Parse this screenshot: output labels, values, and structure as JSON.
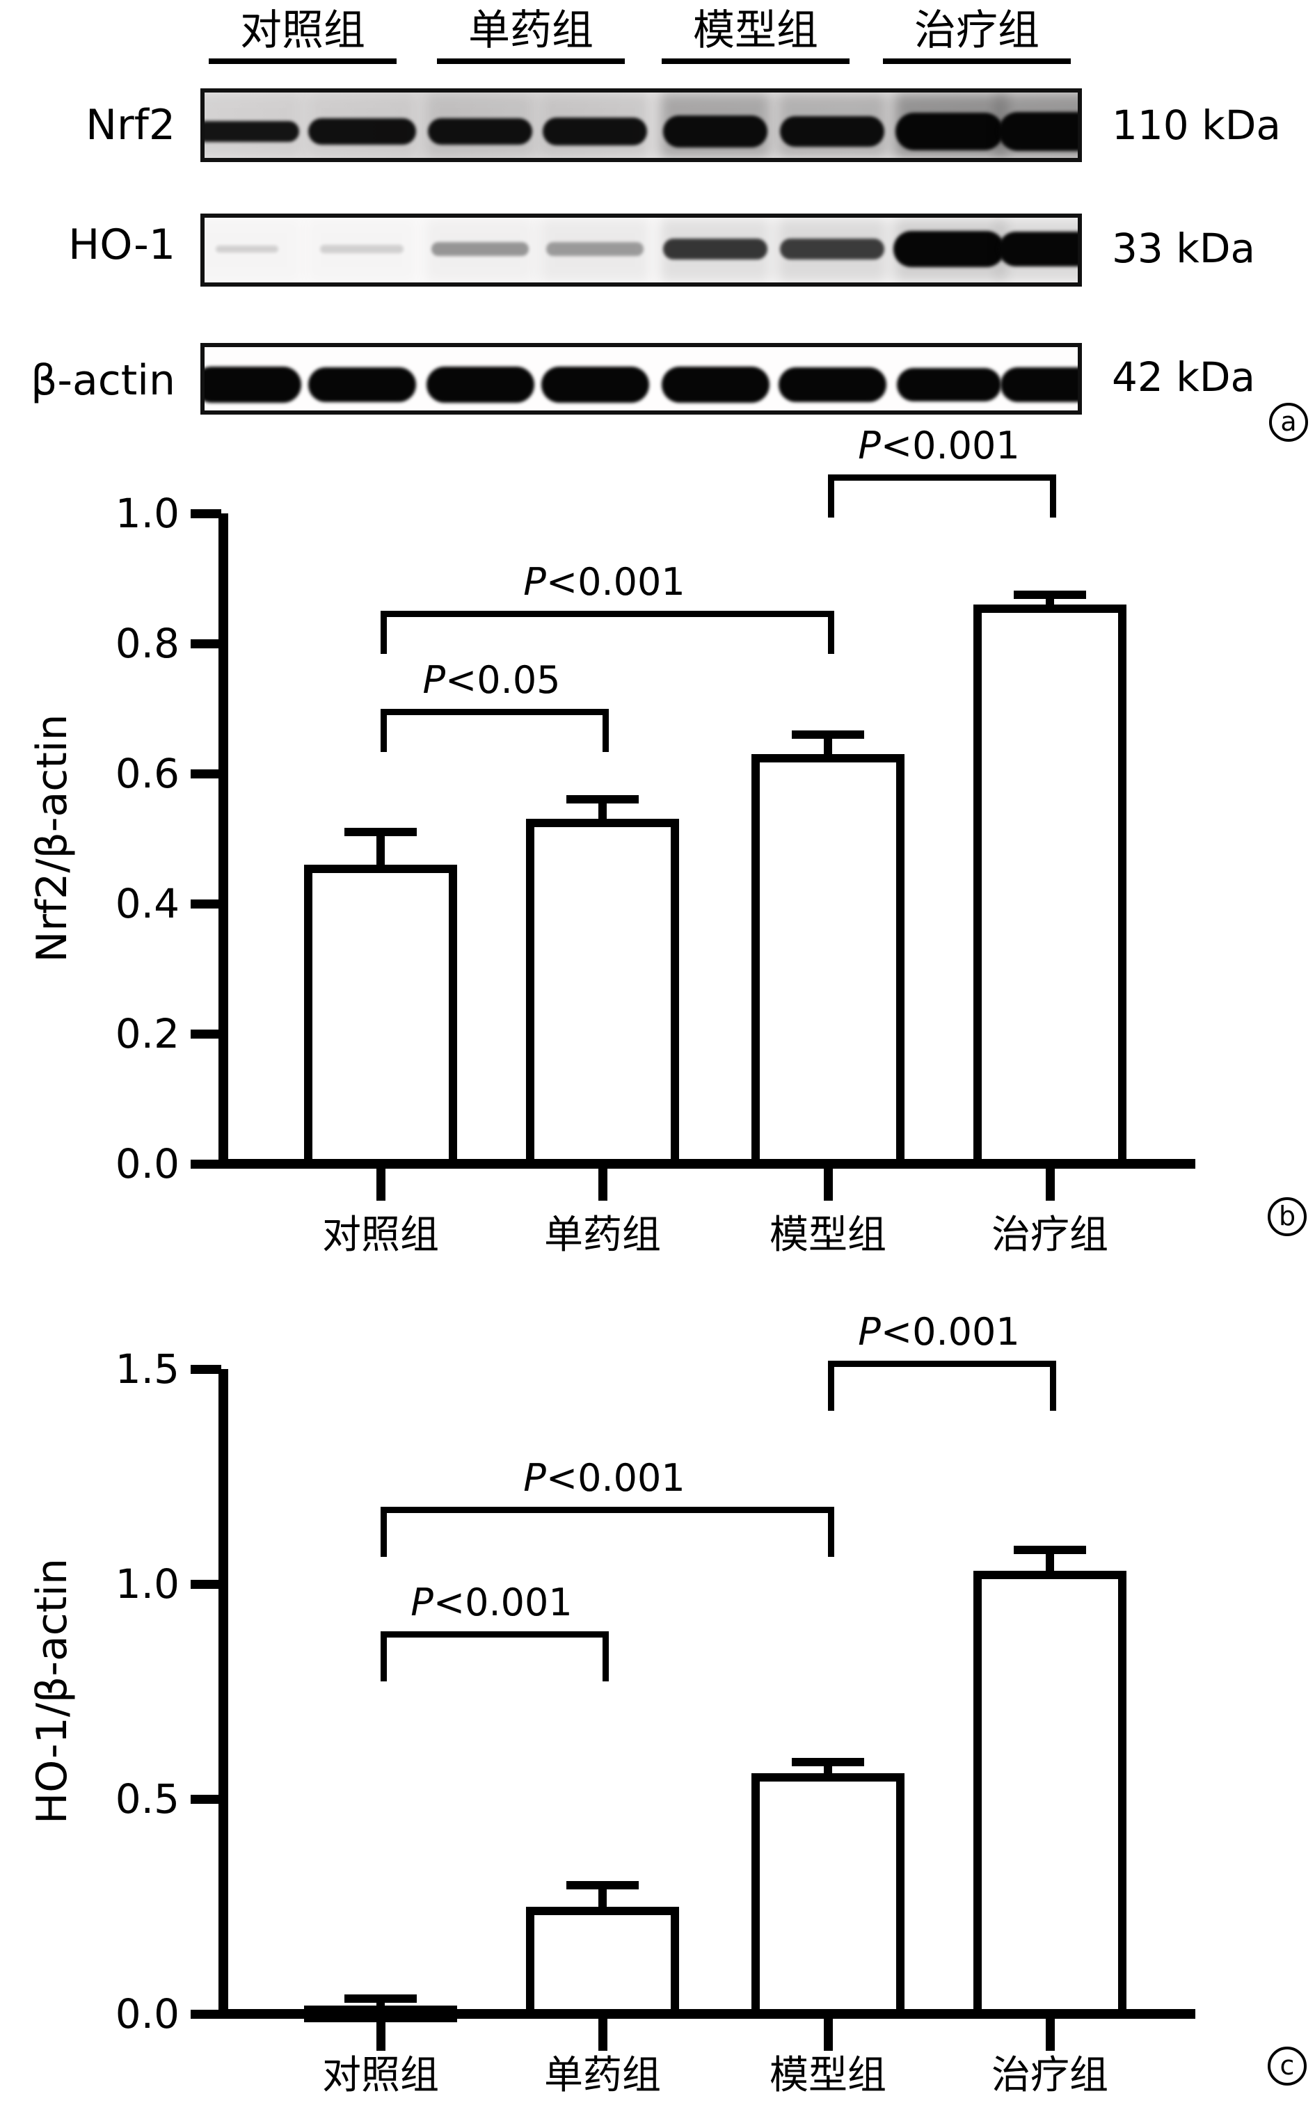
{
  "colors": {
    "ink": "#000000",
    "background": "#ffffff"
  },
  "panel_a": {
    "panel_label": "a",
    "group_labels": [
      "对照组",
      "单药组",
      "模型组",
      "治疗组"
    ],
    "rows": [
      {
        "protein": "Nrf2",
        "kda": "110 kDa",
        "bands": [
          {
            "w": 150,
            "h": 30,
            "o": 0.93,
            "s": 0.08
          },
          {
            "w": 155,
            "h": 38,
            "o": 0.95,
            "s": 0.08
          },
          {
            "w": 150,
            "h": 38,
            "o": 0.95,
            "s": 0.12
          },
          {
            "w": 150,
            "h": 40,
            "o": 0.95,
            "s": 0.12
          },
          {
            "w": 150,
            "h": 46,
            "o": 0.97,
            "s": 0.28
          },
          {
            "w": 150,
            "h": 44,
            "o": 0.96,
            "s": 0.24
          },
          {
            "w": 155,
            "h": 54,
            "o": 1,
            "s": 0.36
          },
          {
            "w": 160,
            "h": 56,
            "o": 1,
            "s": 0.32
          }
        ]
      },
      {
        "protein": "HO-1",
        "kda": "33 kDa",
        "bands": [
          {
            "w": 90,
            "h": 10,
            "o": 0.15,
            "s": 0.02
          },
          {
            "w": 120,
            "h": 12,
            "o": 0.15,
            "s": 0.02
          },
          {
            "w": 140,
            "h": 20,
            "o": 0.38,
            "s": 0.04
          },
          {
            "w": 140,
            "h": 20,
            "o": 0.35,
            "s": 0.06
          },
          {
            "w": 150,
            "h": 30,
            "o": 0.78,
            "s": 0.1
          },
          {
            "w": 150,
            "h": 30,
            "o": 0.75,
            "s": 0.12
          },
          {
            "w": 160,
            "h": 52,
            "o": 1,
            "s": 0.16
          },
          {
            "w": 160,
            "h": 50,
            "o": 1,
            "s": 0.12
          }
        ]
      },
      {
        "protein": "β-actin",
        "kda": "42 kDa",
        "bands": [
          {
            "w": 155,
            "h": 52,
            "o": 1,
            "s": 0
          },
          {
            "w": 155,
            "h": 50,
            "o": 1,
            "s": 0
          },
          {
            "w": 155,
            "h": 52,
            "o": 1,
            "s": 0
          },
          {
            "w": 155,
            "h": 52,
            "o": 1,
            "s": 0
          },
          {
            "w": 155,
            "h": 52,
            "o": 1,
            "s": 0
          },
          {
            "w": 155,
            "h": 50,
            "o": 1,
            "s": 0
          },
          {
            "w": 150,
            "h": 48,
            "o": 1,
            "s": 0
          },
          {
            "w": 155,
            "h": 50,
            "o": 1,
            "s": 0
          }
        ]
      }
    ]
  },
  "chart_data": [
    {
      "type": "bar",
      "panel": "b",
      "title": "",
      "categories": [
        "对照组",
        "单药组",
        "模型组",
        "治疗组"
      ],
      "values": [
        0.46,
        0.53,
        0.63,
        0.86
      ],
      "errors": [
        0.05,
        0.03,
        0.03,
        0.015
      ],
      "xlabel": "",
      "ylabel": "Nrf2/β-actin",
      "ylim": [
        0,
        1.0
      ],
      "yticks": [
        "0.0",
        "0.2",
        "0.4",
        "0.6",
        "0.8",
        "1.0"
      ],
      "grid": false,
      "legend": "none",
      "bar_fill": "#ffffff",
      "bar_outline": "#000000",
      "significance": [
        {
          "from": 0,
          "to": 1,
          "label": "P<0.05",
          "height": 0.7
        },
        {
          "from": 0,
          "to": 2,
          "label": "P<0.001",
          "height": 0.85
        },
        {
          "from": 2,
          "to": 3,
          "label": "P<0.001",
          "height": 1.06
        }
      ]
    },
    {
      "type": "bar",
      "panel": "c",
      "title": "",
      "categories": [
        "对照组",
        "单药组",
        "模型组",
        "治疗组"
      ],
      "values": [
        0.02,
        0.25,
        0.56,
        1.03
      ],
      "errors": [
        0.015,
        0.05,
        0.025,
        0.05
      ],
      "xlabel": "",
      "ylabel": "HO-1/β-actin",
      "ylim": [
        0,
        1.5
      ],
      "yticks": [
        "0.0",
        "0.5",
        "1.0",
        "1.5"
      ],
      "grid": false,
      "legend": "none",
      "bar_fill": "#ffffff",
      "bar_outline": "#000000",
      "significance": [
        {
          "from": 0,
          "to": 1,
          "label": "P<0.001",
          "height": 0.89
        },
        {
          "from": 0,
          "to": 2,
          "label": "P<0.001",
          "height": 1.18
        },
        {
          "from": 2,
          "to": 3,
          "label": "P<0.001",
          "height": 1.52
        }
      ]
    }
  ]
}
